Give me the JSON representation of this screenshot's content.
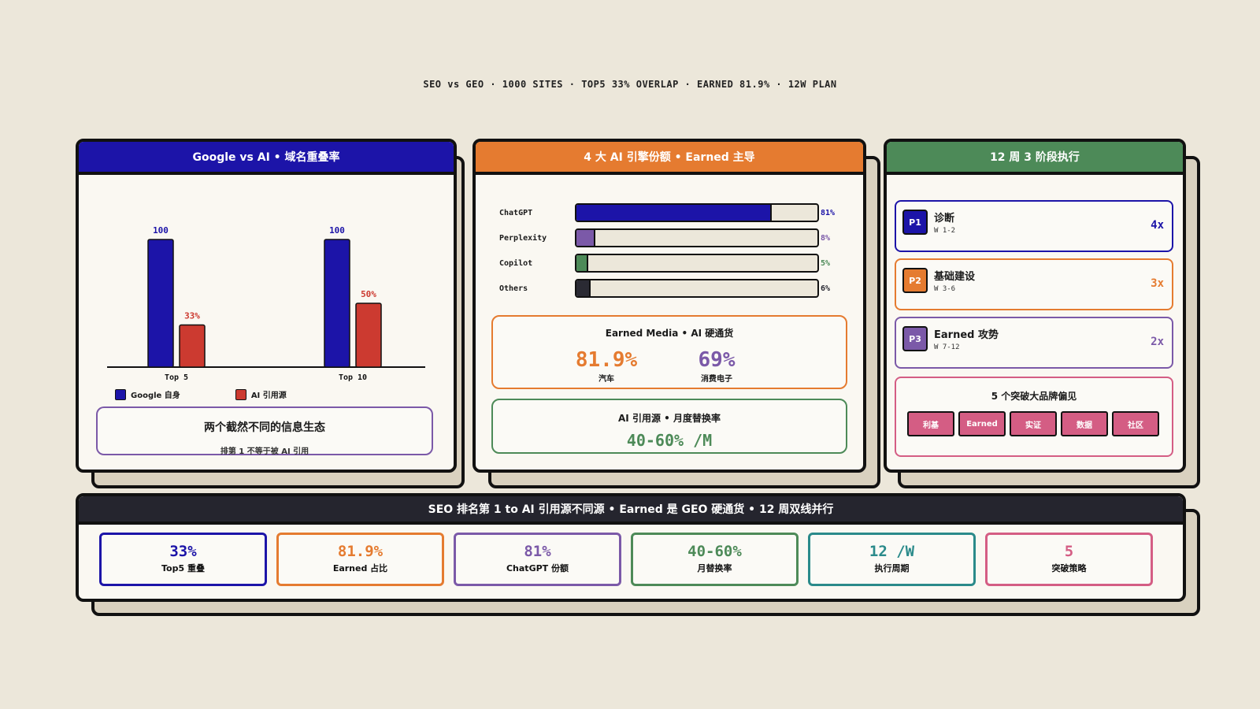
{
  "page_title": "SEO vs GEO · 1000 SITES · TOP5 33% OVERLAP · EARNED 81.9% · 12W PLAN",
  "left_panel": {
    "header": "Google vs AI • 域名重叠率",
    "note_title": "两个截然不同的信息生态",
    "note_sub": "排第 1 不等于被 AI 引用"
  },
  "chart_data": {
    "type": "bar",
    "categories": [
      "Top 5",
      "Top 10"
    ],
    "series": [
      {
        "name": "Google 自身",
        "values": [
          100,
          100
        ],
        "labels": [
          "100",
          "100"
        ],
        "color": "#1c14a8"
      },
      {
        "name": "AI 引用源",
        "values": [
          33,
          50
        ],
        "labels": [
          "33%",
          "50%"
        ],
        "color": "#cc3a30"
      }
    ],
    "ylim": [
      0,
      100
    ],
    "legend": "bottom-left"
  },
  "middle_panel": {
    "header": "4 大 AI 引擎份额 • Earned 主导",
    "shares": [
      {
        "name": "ChatGPT",
        "value": 81,
        "label": "81%",
        "color": "#1c14a8"
      },
      {
        "name": "Perplexity",
        "value": 8,
        "label": "8%",
        "color": "#7b59a8"
      },
      {
        "name": "Copilot",
        "value": 5,
        "label": "5%",
        "color": "#4d8a58"
      },
      {
        "name": "Others",
        "value": 6,
        "label": "6%",
        "color": "#2a2a33"
      }
    ],
    "earned_title": "Earned Media • AI 硬通货",
    "earned_stats": [
      {
        "value": "81.9%",
        "label": "汽车",
        "color": "#e57b30"
      },
      {
        "value": "69%",
        "label": "消费电子",
        "color": "#7b59a8"
      }
    ],
    "replace_title": "AI 引用源 • 月度替换率",
    "replace_value": "40-60% /M"
  },
  "right_panel": {
    "header": "12 周 3 阶段执行",
    "phases": [
      {
        "badge": "P1",
        "name": "诊断",
        "weeks": "W 1-2",
        "mult": "4x",
        "color": "#1c14a8"
      },
      {
        "badge": "P2",
        "name": "基础建设",
        "weeks": "W 3-6",
        "mult": "3x",
        "color": "#e57b30"
      },
      {
        "badge": "P3",
        "name": "Earned 攻势",
        "weeks": "W 7-12",
        "mult": "2x",
        "color": "#7b59a8"
      }
    ],
    "breakthrough_title": "5 个突破大品牌偏见",
    "chips": [
      "利基",
      "Earned",
      "实证",
      "数据",
      "社区"
    ]
  },
  "bottom_panel": {
    "header": "SEO 排名第 1 to AI 引用源不同源 • Earned 是 GEO 硬通货 • 12 周双线并行",
    "kpis": [
      {
        "value": "33%",
        "label": "Top5 重叠",
        "color": "#1c14a8"
      },
      {
        "value": "81.9%",
        "label": "Earned 占比",
        "color": "#e57b30"
      },
      {
        "value": "81%",
        "label": "ChatGPT 份额",
        "color": "#7b59a8"
      },
      {
        "value": "40-60%",
        "label": "月替换率",
        "color": "#4d8a58"
      },
      {
        "value": "12 /W",
        "label": "执行周期",
        "color": "#2a8a8a"
      },
      {
        "value": "5",
        "label": "突破策略",
        "color": "#d45d84"
      }
    ]
  },
  "colors": {
    "blue": "#1c14a8",
    "orange": "#e57b30",
    "green": "#4d8a58",
    "dark": "#25252e",
    "pink": "#d45d84"
  }
}
